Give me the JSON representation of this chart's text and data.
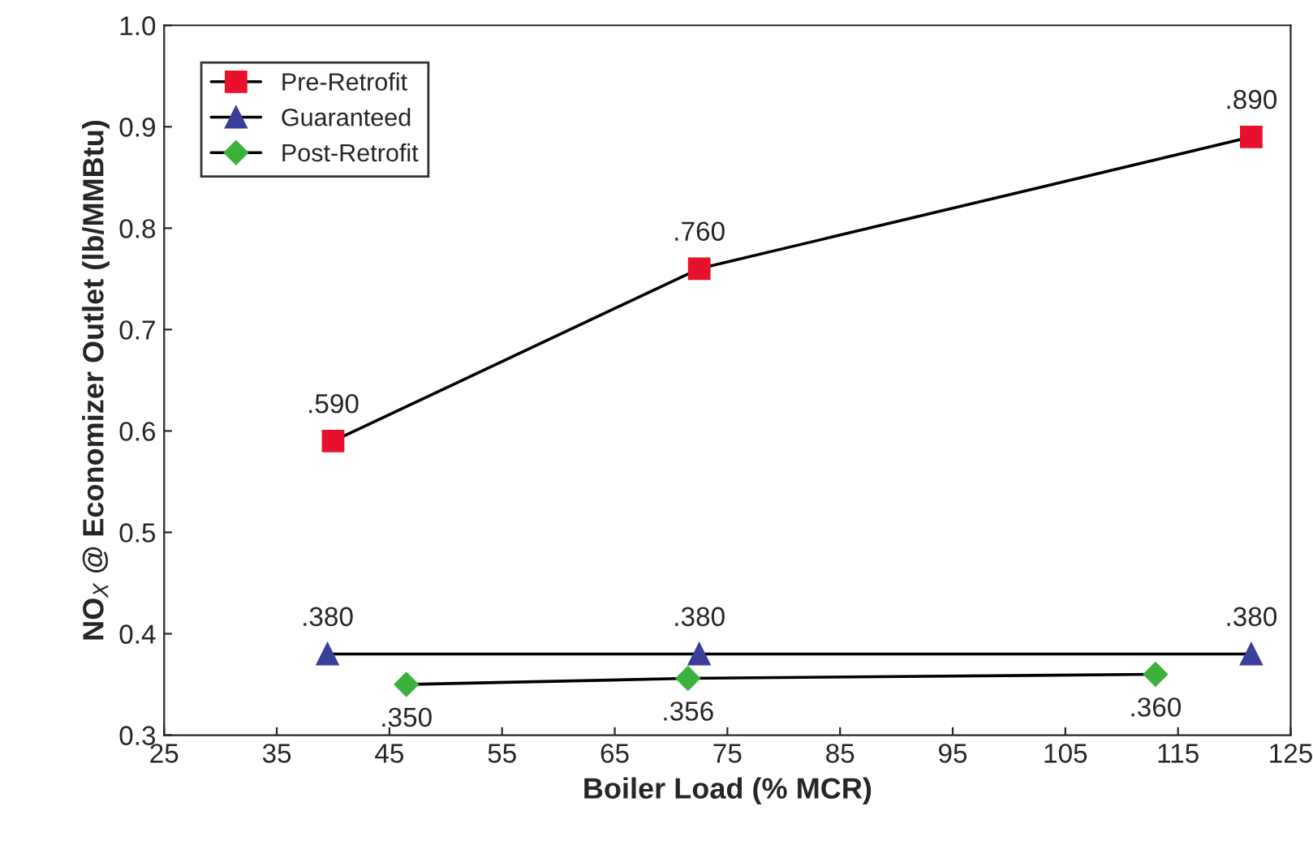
{
  "chart_data": {
    "type": "line",
    "xlabel": "Boiler Load (% MCR)",
    "ylabel": "NO$_{X}$ @ Economizer Outlet (lb/MMBtu)",
    "xlim": [
      25,
      125
    ],
    "xticks": [
      25,
      35,
      45,
      55,
      65,
      75,
      85,
      95,
      105,
      115,
      125
    ],
    "ylim": [
      0.3,
      1.0
    ],
    "yticks": [
      0.3,
      0.4,
      0.5,
      0.6,
      0.7,
      0.8,
      0.9,
      {
        "value": 1.0,
        "label": "1.0"
      }
    ],
    "grid": false,
    "legend": "top left",
    "series": [
      {
        "name": "Pre-Retrofit",
        "color": "#e8112d",
        "marker": "square",
        "x": [
          40,
          72.5,
          121.5
        ],
        "values": [
          0.59,
          0.76,
          0.89
        ],
        "value_labels": [
          ".590",
          ".760",
          ".890"
        ]
      },
      {
        "name": "Guaranteed",
        "color": "#3a3f9a",
        "marker": "triangle",
        "x": [
          39.5,
          72.5,
          121.5
        ],
        "values": [
          0.38,
          0.38,
          0.38
        ],
        "value_labels": [
          ".380",
          ".380",
          ".380"
        ]
      },
      {
        "name": "Post-Retrofit",
        "color": "#3cb23c",
        "marker": "diamond",
        "x": [
          46.5,
          71.5,
          113
        ],
        "values": [
          0.35,
          0.356,
          0.36
        ],
        "value_labels": [
          ".350",
          ".356",
          ".360"
        ]
      }
    ]
  }
}
